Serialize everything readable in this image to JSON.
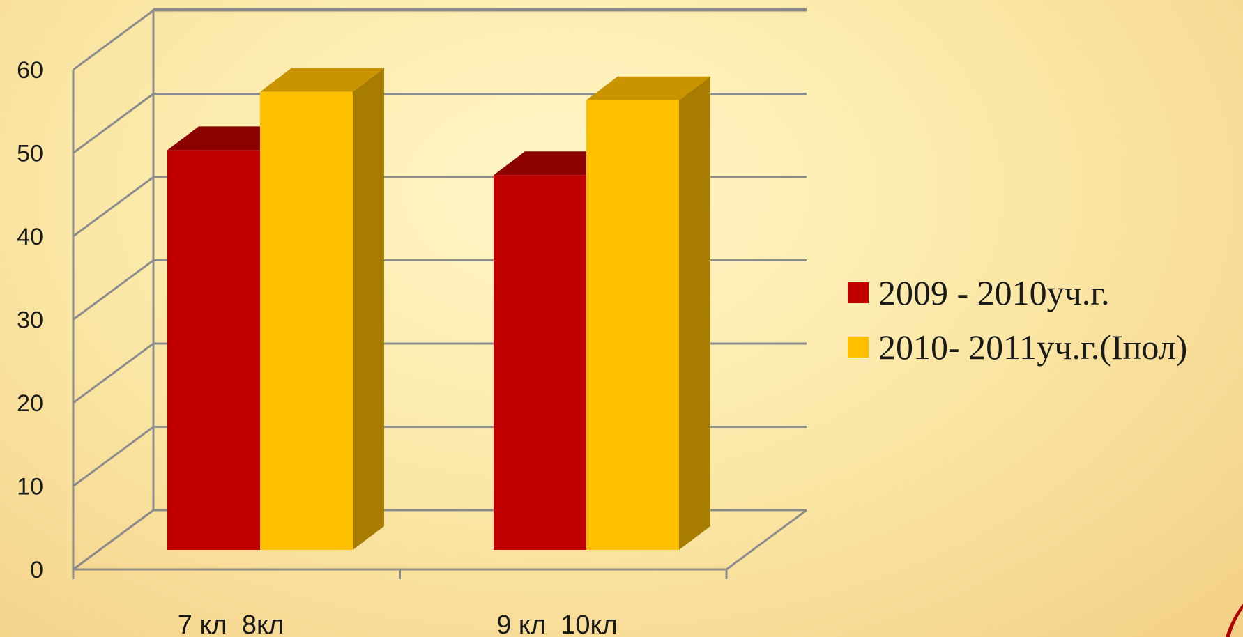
{
  "chart_data": {
    "type": "bar",
    "style": "3d-clustered-column",
    "categories": [
      "7 кл  8кл",
      "9 кл  10кл"
    ],
    "series": [
      {
        "name": "2009 - 2010уч.г.",
        "values": [
          48,
          45
        ],
        "color": "#c00000",
        "top_color": "#8b0000",
        "side_color": "#8b0000"
      },
      {
        "name": "2010- 2011уч.г.(Іпол)",
        "values": [
          55,
          54
        ],
        "color": "#ffc000",
        "top_color": "#c99400",
        "side_color": "#a87c00"
      }
    ],
    "ylim": [
      0,
      60
    ],
    "yticks": [
      0,
      10,
      20,
      30,
      40,
      50,
      60
    ],
    "grid": true,
    "legend_position": "right",
    "title": "",
    "xlabel": "",
    "ylabel": ""
  },
  "colors": {
    "grid": "#8c8c8c",
    "accent_corner": "#b00000"
  }
}
